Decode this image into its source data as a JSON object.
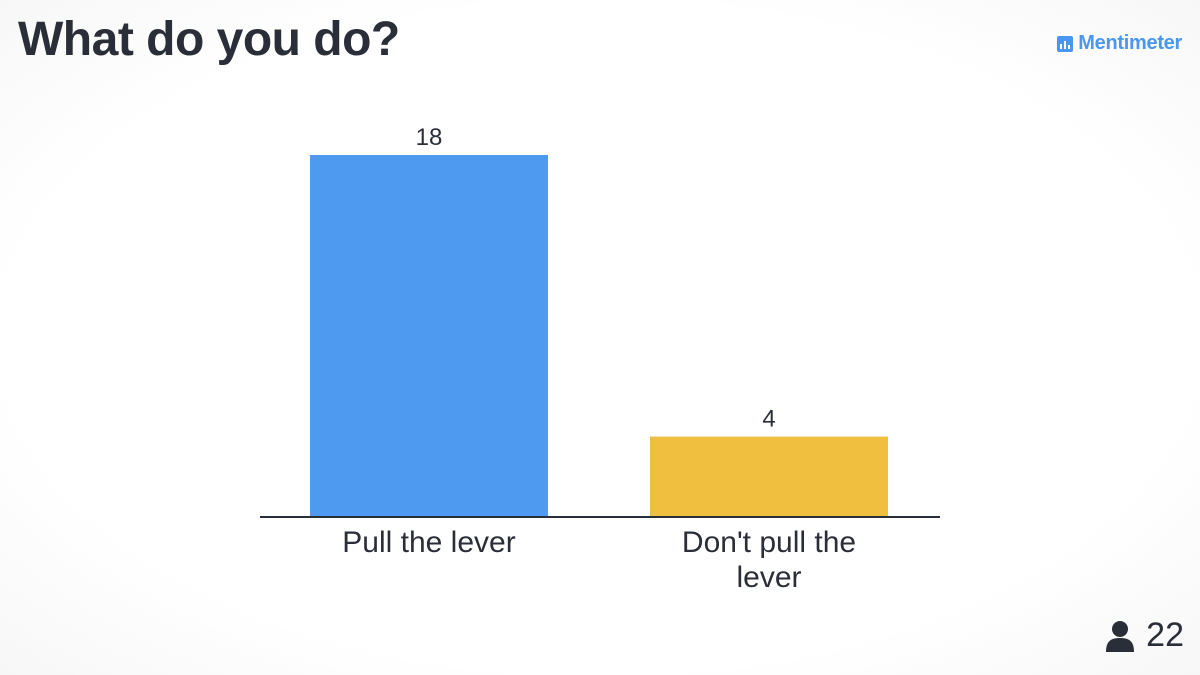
{
  "question": "What do you do?",
  "brand": {
    "name": "Mentimeter",
    "icon": "mentimeter-logo-icon",
    "color": "#4a97f2"
  },
  "participants": {
    "icon": "person-icon",
    "count": "22"
  },
  "chart_data": {
    "type": "bar",
    "categories": [
      "Pull the lever",
      "Don't pull the lever"
    ],
    "category_lines": [
      [
        "Pull the lever"
      ],
      [
        "Don't pull the",
        "lever"
      ]
    ],
    "values": [
      18,
      4
    ],
    "value_labels": [
      "18",
      "4"
    ],
    "colors": [
      "#4e9af1",
      "#f0bf3f"
    ],
    "ylim": [
      0,
      18
    ],
    "grid": false,
    "legend": "none"
  }
}
